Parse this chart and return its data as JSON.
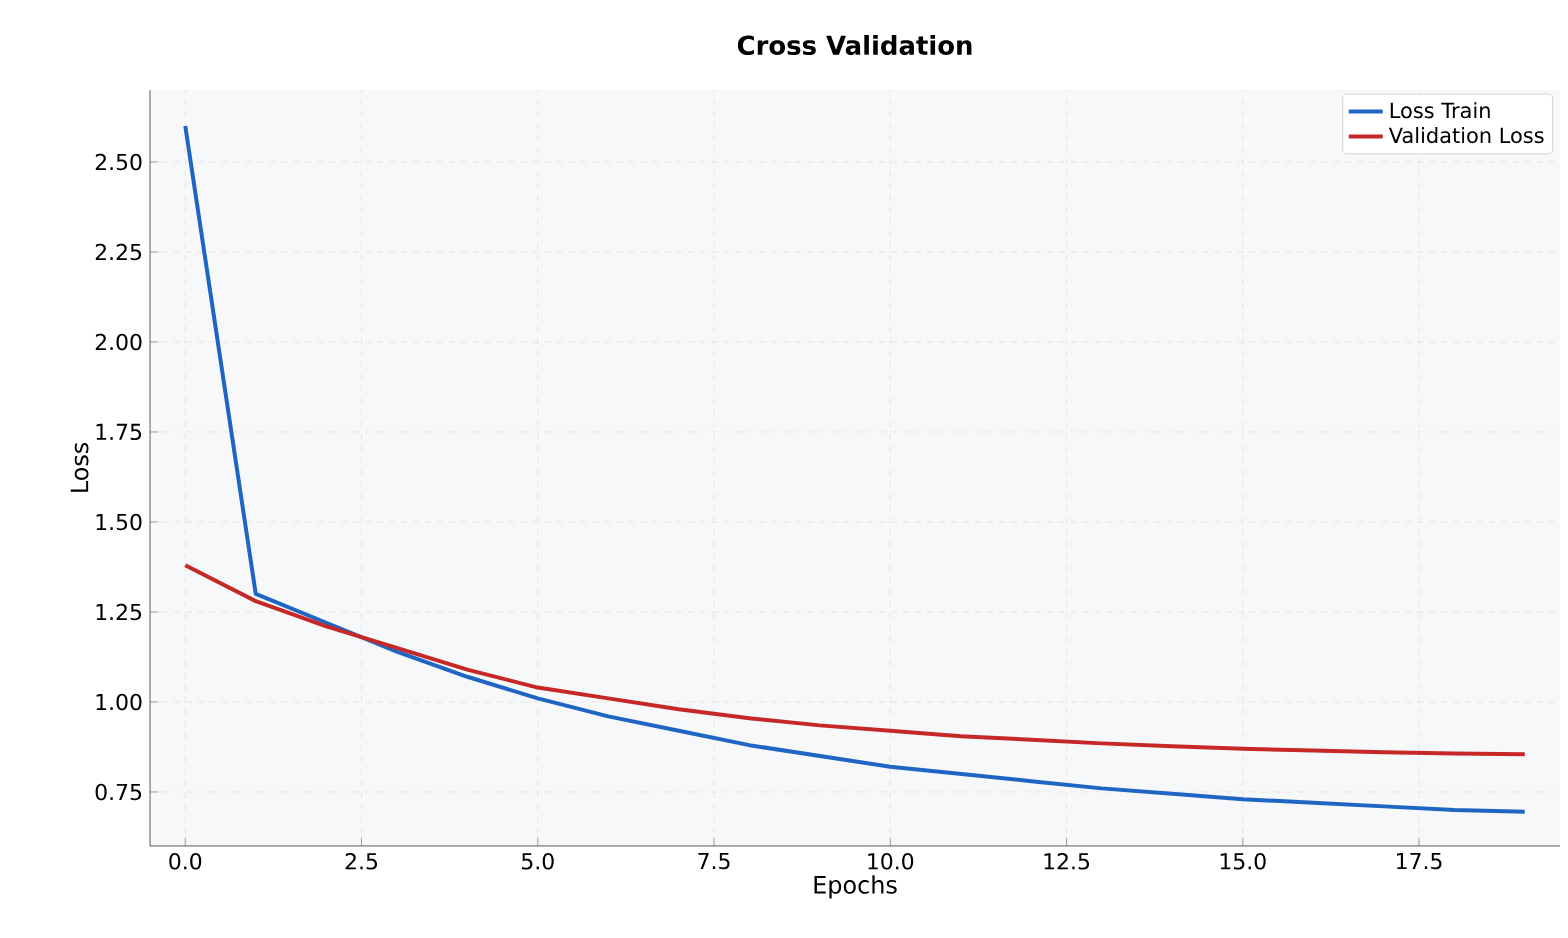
{
  "chart_data": {
    "type": "line",
    "title": "Cross Validation",
    "xlabel": "Epochs",
    "ylabel": "Loss",
    "x": [
      0,
      1,
      2,
      3,
      4,
      5,
      6,
      7,
      8,
      9,
      10,
      11,
      12,
      13,
      14,
      15,
      16,
      17,
      18,
      19
    ],
    "series": [
      {
        "name": "Loss Train",
        "color": "#1f66c4",
        "values": [
          2.6,
          1.3,
          1.22,
          1.14,
          1.07,
          1.01,
          0.96,
          0.92,
          0.88,
          0.85,
          0.82,
          0.8,
          0.78,
          0.76,
          0.745,
          0.73,
          0.72,
          0.71,
          0.7,
          0.695
        ]
      },
      {
        "name": "Validation Loss",
        "color": "#c62828",
        "values": [
          1.38,
          1.28,
          1.21,
          1.15,
          1.09,
          1.04,
          1.01,
          0.98,
          0.955,
          0.935,
          0.92,
          0.905,
          0.895,
          0.885,
          0.877,
          0.87,
          0.865,
          0.86,
          0.857,
          0.855
        ]
      }
    ],
    "xlim": [
      -0.5,
      19.5
    ],
    "ylim": [
      0.6,
      2.7
    ],
    "xticks": [
      {
        "value": 0,
        "label": "0.0"
      },
      {
        "value": 2.5,
        "label": "2.5"
      },
      {
        "value": 5,
        "label": "5.0"
      },
      {
        "value": 7.5,
        "label": "7.5"
      },
      {
        "value": 10,
        "label": "10.0"
      },
      {
        "value": 12.5,
        "label": "12.5"
      },
      {
        "value": 15,
        "label": "15.0"
      },
      {
        "value": 17.5,
        "label": "17.5"
      }
    ],
    "yticks": [
      {
        "value": 0.75,
        "label": "0.75"
      },
      {
        "value": 1,
        "label": "1.00"
      },
      {
        "value": 1.25,
        "label": "1.25"
      },
      {
        "value": 1.5,
        "label": "1.50"
      },
      {
        "value": 1.75,
        "label": "1.75"
      },
      {
        "value": 2,
        "label": "2.00"
      },
      {
        "value": 2.25,
        "label": "2.25"
      },
      {
        "value": 2.5,
        "label": "2.50"
      }
    ],
    "grid": true,
    "legend": "top right",
    "marker": "none",
    "line_style": "solid"
  }
}
